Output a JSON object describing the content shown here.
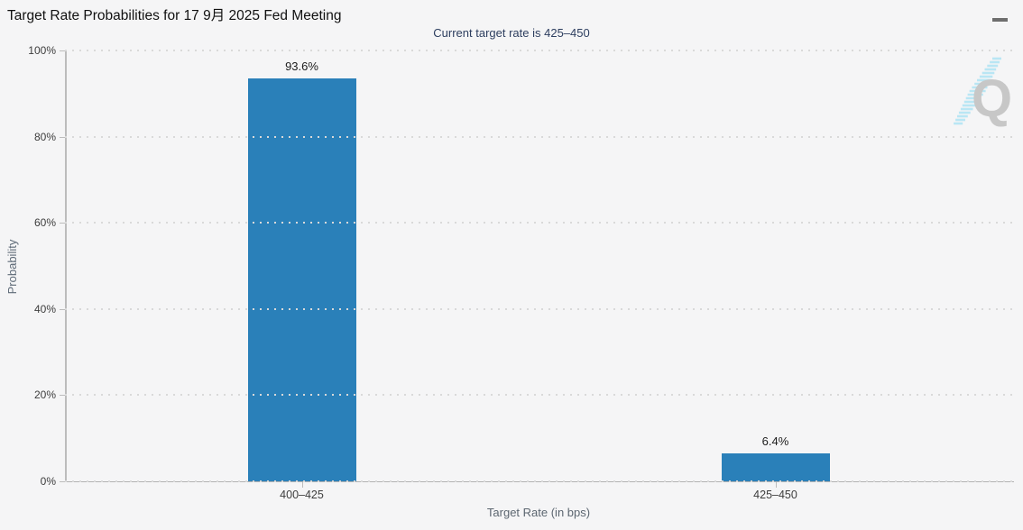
{
  "header": {
    "menu_icon": "hamburger-menu"
  },
  "chart_data": {
    "type": "bar",
    "title": "Target Rate Probabilities for 17 9月 2025 Fed Meeting",
    "subtitle": "Current target rate is 425–450",
    "categories": [
      "400–425",
      "425–450"
    ],
    "values": [
      93.6,
      6.4
    ],
    "value_labels": [
      "93.6%",
      "6.4%"
    ],
    "xlabel": "Target Rate (in bps)",
    "ylabel": "Probability",
    "ylim": [
      0,
      100
    ],
    "yticks": [
      "0%",
      "20%",
      "40%",
      "60%",
      "80%",
      "100%"
    ],
    "grid": "horizontal-dotted",
    "legend": "none",
    "bar_color": "#2a80b9",
    "watermark": "Q"
  },
  "colors": {
    "background": "#f5f5f6",
    "bar": "#2a80b9",
    "title_text": "#111111",
    "subtitle_text": "#2d3e5f",
    "axis_line": "#bcbcbc",
    "grid_dot": "#d9d9d9",
    "tick_label": "#3d3d3d",
    "axis_title": "#5f6b78",
    "menu_icon": "#6e6e6e",
    "watermark_q": "#c7c7c7",
    "watermark_stripe": "#b9e6f4"
  }
}
